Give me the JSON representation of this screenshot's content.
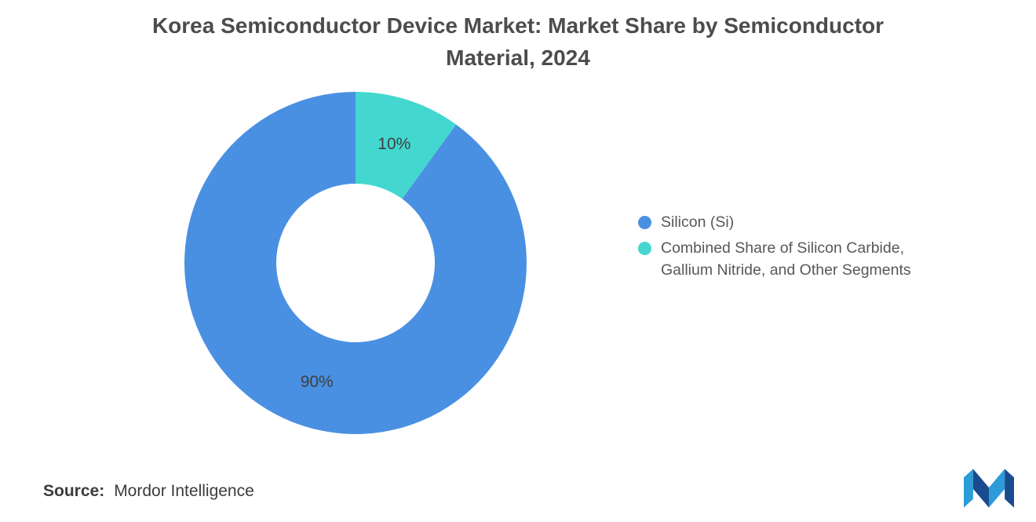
{
  "chart_data": {
    "type": "pie",
    "subtype": "donut",
    "title": "Korea Semiconductor Device Market: Market Share by Semiconductor Material, 2024",
    "categories": [
      "Silicon (Si)",
      "Combined Share of Silicon Carbide, Gallium Nitride, and Other Segments"
    ],
    "values": [
      90,
      10
    ],
    "labels": [
      "90%",
      "10%"
    ],
    "colors": [
      "#4A90E2",
      "#43D7CF"
    ],
    "legend_position": "right",
    "start_angle_deg": 0,
    "draw_order": [
      1,
      0
    ],
    "inner_radius_ratio": 0.46
  },
  "source": {
    "prefix": "Source:",
    "name": "Mordor Intelligence"
  },
  "logo": {
    "name": "mordor-intelligence-logo",
    "dark_color": "#1B4B8F",
    "light_color": "#2B9CD8"
  }
}
